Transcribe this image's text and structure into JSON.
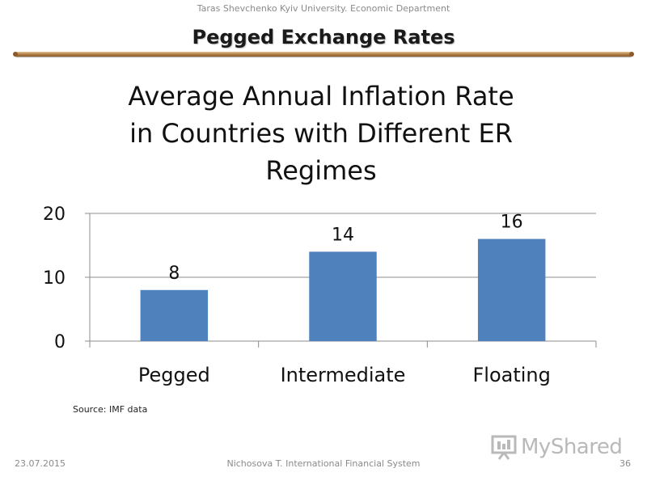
{
  "header": {
    "institution": "Taras Shevchenko Kyiv University. Economic Department",
    "title": "Pegged Exchange Rates"
  },
  "chart_data": {
    "type": "bar",
    "title_lines": [
      "Average Annual Inflation Rate",
      "in Countries with Different ER",
      "Regimes"
    ],
    "categories": [
      "Pegged",
      "Intermediate",
      "Floating"
    ],
    "values": [
      8,
      14,
      16
    ],
    "data_labels": [
      "8",
      "14",
      "16"
    ],
    "ylim": [
      0,
      20
    ],
    "yticks": [
      0,
      10,
      20
    ],
    "grid": true,
    "legend": "none",
    "bar_color": "#4f81bd"
  },
  "source_note": "Source: IMF data",
  "footer": {
    "date": "23.07.2015",
    "center": "Nichosova T. International Financial System",
    "page": "36"
  },
  "logo": {
    "icon": "presentation-board-icon",
    "text": "MyShared"
  }
}
